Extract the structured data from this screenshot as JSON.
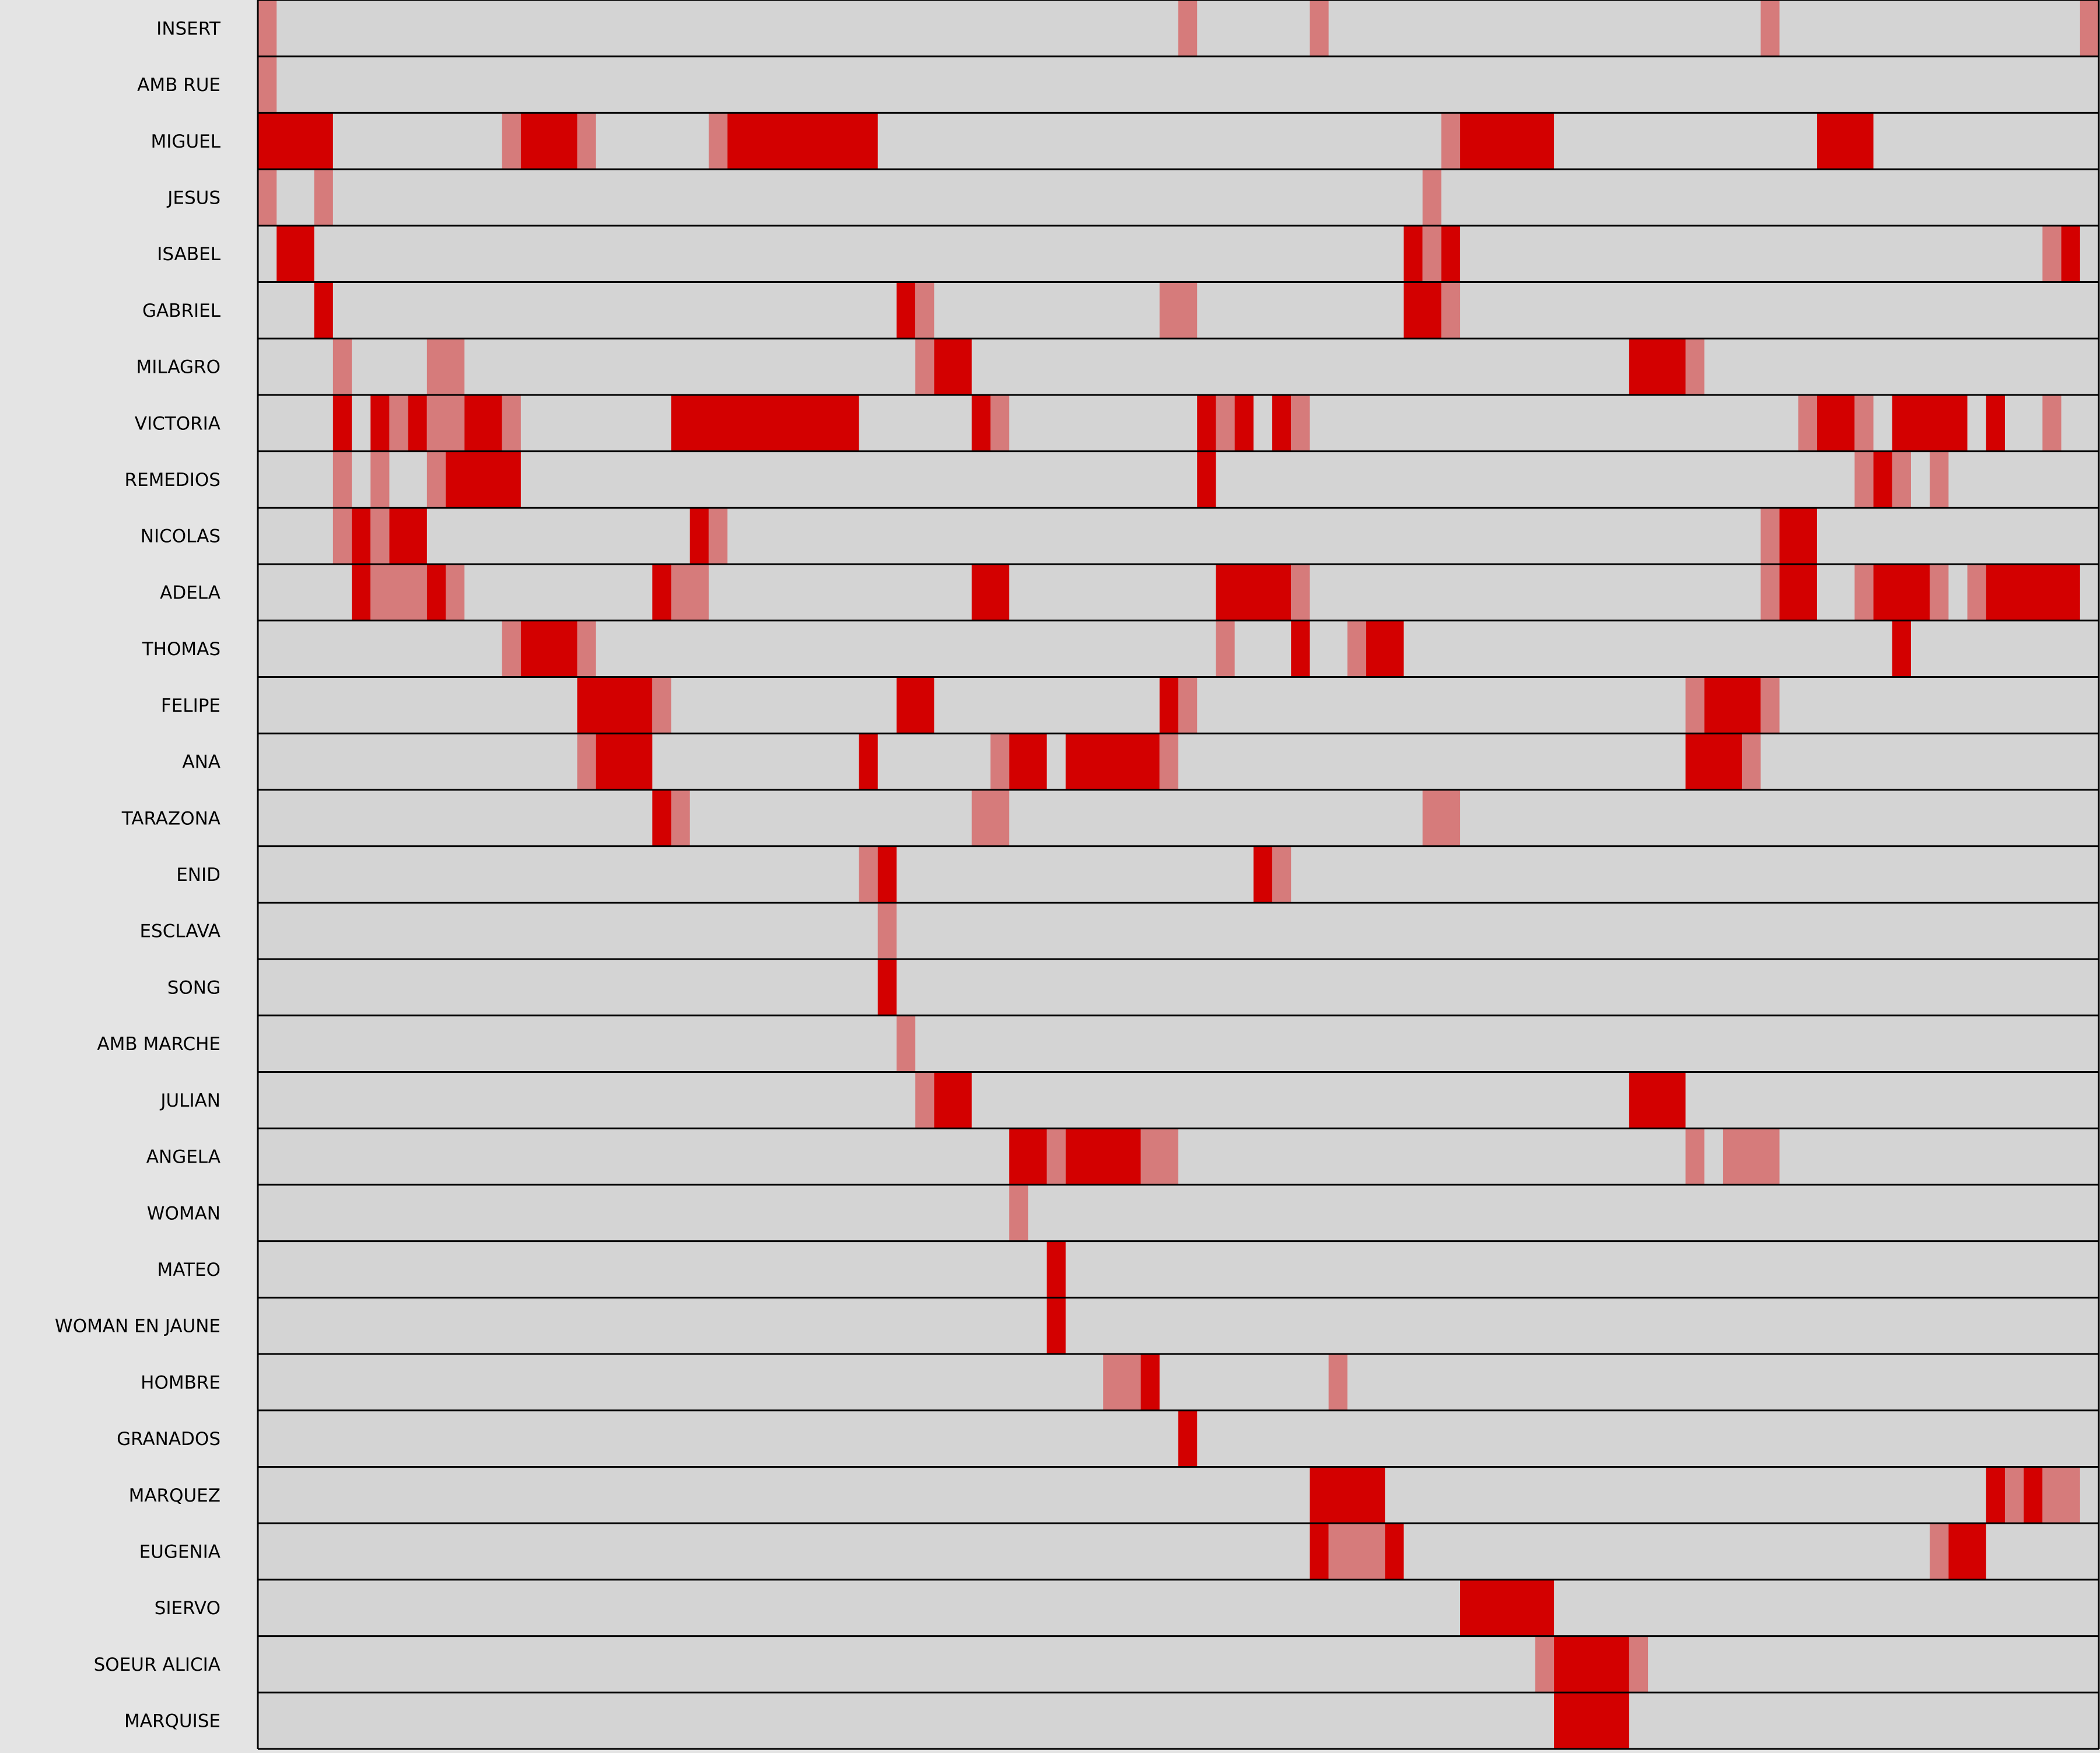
{
  "chart_data": {
    "type": "heatmap",
    "title": "",
    "xlabel": "",
    "ylabel": "",
    "scenes": 98,
    "levels": [
      "present",
      "speaking"
    ],
    "colors": {
      "background": "#e4e4e4",
      "empty": "#d4d4d4",
      "present": "#d67b7b",
      "speaking": "#d30000",
      "grid": "#000000"
    },
    "rows": [
      {
        "name": "INSERT",
        "segments": [
          [
            0,
            1,
            "present"
          ],
          [
            49,
            50,
            "present"
          ],
          [
            56,
            57,
            "present"
          ],
          [
            80,
            81,
            "present"
          ],
          [
            97,
            98,
            "present"
          ]
        ]
      },
      {
        "name": "AMB RUE",
        "segments": [
          [
            0,
            1,
            "present"
          ]
        ]
      },
      {
        "name": "MIGUEL",
        "segments": [
          [
            0,
            4,
            "speaking"
          ],
          [
            13,
            14,
            "present"
          ],
          [
            14,
            17,
            "speaking"
          ],
          [
            17,
            18,
            "present"
          ],
          [
            24,
            25,
            "present"
          ],
          [
            25,
            33,
            "speaking"
          ],
          [
            63,
            64,
            "present"
          ],
          [
            64,
            69,
            "speaking"
          ],
          [
            83,
            86,
            "speaking"
          ]
        ]
      },
      {
        "name": "JESUS",
        "segments": [
          [
            0,
            1,
            "present"
          ],
          [
            3,
            4,
            "present"
          ],
          [
            62,
            63,
            "present"
          ]
        ]
      },
      {
        "name": "ISABEL",
        "segments": [
          [
            1,
            3,
            "speaking"
          ],
          [
            61,
            62,
            "speaking"
          ],
          [
            62,
            63,
            "present"
          ],
          [
            63,
            64,
            "speaking"
          ],
          [
            95,
            96,
            "present"
          ],
          [
            96,
            97,
            "speaking"
          ]
        ]
      },
      {
        "name": "GABRIEL",
        "segments": [
          [
            3,
            4,
            "speaking"
          ],
          [
            34,
            35,
            "speaking"
          ],
          [
            35,
            36,
            "present"
          ],
          [
            48,
            50,
            "present"
          ],
          [
            61,
            63,
            "speaking"
          ],
          [
            63,
            64,
            "present"
          ]
        ]
      },
      {
        "name": "MILAGRO",
        "segments": [
          [
            4,
            5,
            "present"
          ],
          [
            9,
            11,
            "present"
          ],
          [
            35,
            36,
            "present"
          ],
          [
            36,
            38,
            "speaking"
          ],
          [
            73,
            76,
            "speaking"
          ],
          [
            76,
            77,
            "present"
          ]
        ]
      },
      {
        "name": "VICTORIA",
        "segments": [
          [
            4,
            5,
            "speaking"
          ],
          [
            6,
            7,
            "speaking"
          ],
          [
            7,
            8,
            "present"
          ],
          [
            8,
            9,
            "speaking"
          ],
          [
            9,
            11,
            "present"
          ],
          [
            11,
            13,
            "speaking"
          ],
          [
            13,
            14,
            "present"
          ],
          [
            22,
            32,
            "speaking"
          ],
          [
            38,
            39,
            "speaking"
          ],
          [
            39,
            40,
            "present"
          ],
          [
            50,
            51,
            "speaking"
          ],
          [
            51,
            52,
            "present"
          ],
          [
            52,
            53,
            "speaking"
          ],
          [
            54,
            55,
            "speaking"
          ],
          [
            55,
            56,
            "present"
          ],
          [
            82,
            83,
            "present"
          ],
          [
            83,
            85,
            "speaking"
          ],
          [
            85,
            86,
            "present"
          ],
          [
            87,
            91,
            "speaking"
          ],
          [
            92,
            93,
            "speaking"
          ],
          [
            95,
            96,
            "present"
          ]
        ]
      },
      {
        "name": "REMEDIOS",
        "segments": [
          [
            4,
            5,
            "present"
          ],
          [
            6,
            7,
            "present"
          ],
          [
            9,
            10,
            "present"
          ],
          [
            10,
            14,
            "speaking"
          ],
          [
            50,
            51,
            "speaking"
          ],
          [
            85,
            86,
            "present"
          ],
          [
            86,
            87,
            "speaking"
          ],
          [
            87,
            88,
            "present"
          ],
          [
            89,
            90,
            "present"
          ]
        ]
      },
      {
        "name": "NICOLAS",
        "segments": [
          [
            4,
            5,
            "present"
          ],
          [
            5,
            6,
            "speaking"
          ],
          [
            6,
            7,
            "present"
          ],
          [
            7,
            9,
            "speaking"
          ],
          [
            23,
            24,
            "speaking"
          ],
          [
            24,
            25,
            "present"
          ],
          [
            80,
            81,
            "present"
          ],
          [
            81,
            83,
            "speaking"
          ]
        ]
      },
      {
        "name": "ADELA",
        "segments": [
          [
            5,
            6,
            "speaking"
          ],
          [
            6,
            9,
            "present"
          ],
          [
            9,
            10,
            "speaking"
          ],
          [
            10,
            11,
            "present"
          ],
          [
            21,
            22,
            "speaking"
          ],
          [
            22,
            24,
            "present"
          ],
          [
            38,
            40,
            "speaking"
          ],
          [
            51,
            55,
            "speaking"
          ],
          [
            55,
            56,
            "present"
          ],
          [
            80,
            81,
            "present"
          ],
          [
            81,
            83,
            "speaking"
          ],
          [
            85,
            86,
            "present"
          ],
          [
            86,
            89,
            "speaking"
          ],
          [
            89,
            90,
            "present"
          ],
          [
            91,
            92,
            "present"
          ],
          [
            92,
            97,
            "speaking"
          ]
        ]
      },
      {
        "name": "THOMAS",
        "segments": [
          [
            13,
            14,
            "present"
          ],
          [
            14,
            17,
            "speaking"
          ],
          [
            17,
            18,
            "present"
          ],
          [
            51,
            52,
            "present"
          ],
          [
            55,
            56,
            "speaking"
          ],
          [
            58,
            59,
            "present"
          ],
          [
            59,
            61,
            "speaking"
          ],
          [
            87,
            88,
            "speaking"
          ]
        ]
      },
      {
        "name": "FELIPE",
        "segments": [
          [
            17,
            21,
            "speaking"
          ],
          [
            21,
            22,
            "present"
          ],
          [
            34,
            36,
            "speaking"
          ],
          [
            48,
            49,
            "speaking"
          ],
          [
            49,
            50,
            "present"
          ],
          [
            76,
            77,
            "present"
          ],
          [
            77,
            80,
            "speaking"
          ],
          [
            80,
            81,
            "present"
          ]
        ]
      },
      {
        "name": "ANA",
        "segments": [
          [
            17,
            18,
            "present"
          ],
          [
            18,
            21,
            "speaking"
          ],
          [
            32,
            33,
            "speaking"
          ],
          [
            39,
            40,
            "present"
          ],
          [
            40,
            42,
            "speaking"
          ],
          [
            43,
            48,
            "speaking"
          ],
          [
            48,
            49,
            "present"
          ],
          [
            76,
            79,
            "speaking"
          ],
          [
            79,
            80,
            "present"
          ]
        ]
      },
      {
        "name": "TARAZONA",
        "segments": [
          [
            21,
            22,
            "speaking"
          ],
          [
            22,
            23,
            "present"
          ],
          [
            38,
            40,
            "present"
          ],
          [
            62,
            64,
            "present"
          ]
        ]
      },
      {
        "name": "ENID",
        "segments": [
          [
            32,
            33,
            "present"
          ],
          [
            33,
            34,
            "speaking"
          ],
          [
            53,
            54,
            "speaking"
          ],
          [
            54,
            55,
            "present"
          ]
        ]
      },
      {
        "name": "ESCLAVA",
        "segments": [
          [
            33,
            34,
            "present"
          ]
        ]
      },
      {
        "name": "SONG",
        "segments": [
          [
            33,
            34,
            "speaking"
          ]
        ]
      },
      {
        "name": "AMB MARCHE",
        "segments": [
          [
            34,
            35,
            "present"
          ]
        ]
      },
      {
        "name": "JULIAN",
        "segments": [
          [
            35,
            36,
            "present"
          ],
          [
            36,
            38,
            "speaking"
          ],
          [
            73,
            76,
            "speaking"
          ]
        ]
      },
      {
        "name": "ANGELA",
        "segments": [
          [
            40,
            42,
            "speaking"
          ],
          [
            42,
            43,
            "present"
          ],
          [
            43,
            47,
            "speaking"
          ],
          [
            47,
            49,
            "present"
          ],
          [
            76,
            77,
            "present"
          ],
          [
            78,
            81,
            "present"
          ]
        ]
      },
      {
        "name": "WOMAN",
        "segments": [
          [
            40,
            41,
            "present"
          ]
        ]
      },
      {
        "name": "MATEO",
        "segments": [
          [
            42,
            43,
            "speaking"
          ]
        ]
      },
      {
        "name": "WOMAN EN JAUNE",
        "segments": [
          [
            42,
            43,
            "speaking"
          ]
        ]
      },
      {
        "name": "HOMBRE",
        "segments": [
          [
            45,
            47,
            "present"
          ],
          [
            47,
            48,
            "speaking"
          ],
          [
            57,
            58,
            "present"
          ]
        ]
      },
      {
        "name": "GRANADOS",
        "segments": [
          [
            49,
            50,
            "speaking"
          ]
        ]
      },
      {
        "name": "MARQUEZ",
        "segments": [
          [
            56,
            60,
            "speaking"
          ],
          [
            92,
            93,
            "speaking"
          ],
          [
            93,
            94,
            "present"
          ],
          [
            94,
            95,
            "speaking"
          ],
          [
            95,
            97,
            "present"
          ]
        ]
      },
      {
        "name": "EUGENIA",
        "segments": [
          [
            56,
            57,
            "speaking"
          ],
          [
            57,
            60,
            "present"
          ],
          [
            60,
            61,
            "speaking"
          ],
          [
            89,
            90,
            "present"
          ],
          [
            90,
            92,
            "speaking"
          ]
        ]
      },
      {
        "name": "SIERVO",
        "segments": [
          [
            64,
            69,
            "speaking"
          ]
        ]
      },
      {
        "name": "SOEUR ALICIA",
        "segments": [
          [
            68,
            69,
            "present"
          ],
          [
            69,
            73,
            "speaking"
          ],
          [
            73,
            74,
            "present"
          ]
        ]
      },
      {
        "name": "MARQUISE",
        "segments": [
          [
            69,
            73,
            "speaking"
          ]
        ]
      }
    ]
  }
}
